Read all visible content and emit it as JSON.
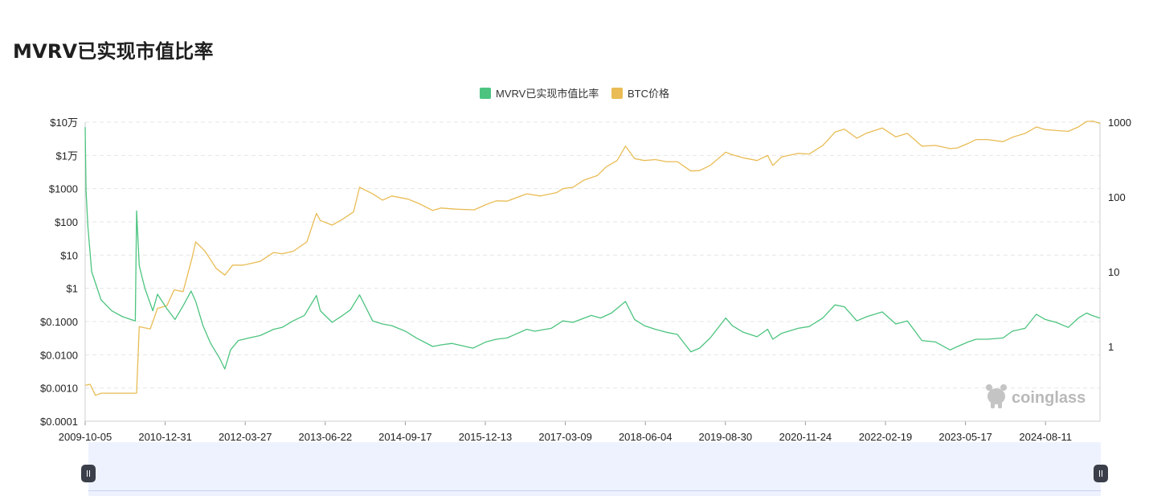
{
  "title": "MVRV已实现市值比率",
  "legend": [
    {
      "label": "MVRV已实现市值比率",
      "color": "#4cc47f"
    },
    {
      "label": "BTC价格",
      "color": "#e9bc55"
    }
  ],
  "watermark": "coinglass",
  "chart_data": {
    "type": "line",
    "x_ticks": [
      "2009-10-05",
      "2010-12-31",
      "2012-03-27",
      "2013-06-22",
      "2014-09-17",
      "2015-12-13",
      "2017-03-09",
      "2018-06-04",
      "2019-08-30",
      "2020-11-24",
      "2022-02-19",
      "2023-05-17",
      "2024-08-11"
    ],
    "x_range": [
      "2009-10-05",
      "2025-03-01"
    ],
    "left_axis": {
      "scale": "log",
      "ticks": [
        "$10万",
        "$1万",
        "$1000",
        "$100",
        "$10",
        "$1",
        "$0.1000",
        "$0.0100",
        "$0.0010",
        "$0.0001"
      ],
      "range": [
        0.0001,
        100000
      ]
    },
    "right_axis": {
      "scale": "log",
      "ticks": [
        "1000",
        "100",
        "10",
        "1"
      ],
      "range": [
        0.1,
        1000
      ]
    },
    "grid": true,
    "legend_position": "top-center",
    "series": [
      {
        "name": "MVRV已实现市值比率",
        "axis": "right",
        "x": [
          "2009-10-05",
          "2009-10-10",
          "2009-10-20",
          "2009-11-10",
          "2010-01-01",
          "2010-03-01",
          "2010-05-01",
          "2010-07-10",
          "2010-07-17",
          "2010-08-01",
          "2010-09-01",
          "2010-10-15",
          "2010-11-10",
          "2011-01-01",
          "2011-02-15",
          "2011-04-01",
          "2011-05-15",
          "2011-06-10",
          "2011-07-20",
          "2011-09-01",
          "2011-10-20",
          "2011-11-18",
          "2011-12-20",
          "2012-02-01",
          "2012-04-01",
          "2012-06-01",
          "2012-08-15",
          "2012-10-01",
          "2012-12-01",
          "2013-02-01",
          "2013-04-09",
          "2013-05-01",
          "2013-07-05",
          "2013-09-01",
          "2013-10-15",
          "2013-12-04",
          "2014-02-15",
          "2014-04-10",
          "2014-06-01",
          "2014-08-15",
          "2014-10-15",
          "2015-01-14",
          "2015-03-01",
          "2015-05-01",
          "2015-08-25",
          "2015-11-04",
          "2016-01-01",
          "2016-03-01",
          "2016-06-18",
          "2016-08-01",
          "2016-11-01",
          "2017-01-04",
          "2017-03-01",
          "2017-06-11",
          "2017-08-01",
          "2017-10-01",
          "2017-12-17",
          "2018-02-06",
          "2018-04-01",
          "2018-06-01",
          "2018-08-01",
          "2018-10-01",
          "2018-12-15",
          "2019-02-01",
          "2019-04-01",
          "2019-06-26",
          "2019-08-01",
          "2019-10-01",
          "2019-12-17",
          "2020-02-13",
          "2020-03-13",
          "2020-05-01",
          "2020-08-01",
          "2020-10-01",
          "2020-12-15",
          "2021-02-21",
          "2021-04-14",
          "2021-06-22",
          "2021-08-15",
          "2021-11-10",
          "2022-01-24",
          "2022-03-29",
          "2022-06-18",
          "2022-09-01",
          "2022-11-21",
          "2023-01-01",
          "2023-03-01",
          "2023-04-14",
          "2023-06-15",
          "2023-09-11",
          "2023-11-01",
          "2024-01-11",
          "2024-03-13",
          "2024-05-01",
          "2024-07-01",
          "2024-09-06",
          "2024-11-01",
          "2024-12-17",
          "2025-01-15",
          "2025-03-01"
        ],
        "values": [
          860,
          120,
          40,
          10,
          4.2,
          3.0,
          2.5,
          2.2,
          65,
          12,
          6.0,
          3.0,
          5.0,
          3.2,
          2.3,
          3.5,
          5.5,
          4.0,
          1.9,
          1.1,
          0.7,
          0.5,
          0.9,
          1.2,
          1.3,
          1.4,
          1.7,
          1.8,
          2.2,
          2.6,
          4.8,
          3.0,
          2.1,
          2.6,
          3.1,
          4.9,
          2.2,
          2.0,
          1.9,
          1.6,
          1.3,
          1.0,
          1.05,
          1.1,
          0.95,
          1.15,
          1.25,
          1.3,
          1.7,
          1.6,
          1.75,
          2.2,
          2.1,
          2.6,
          2.4,
          2.8,
          4.0,
          2.3,
          1.9,
          1.7,
          1.55,
          1.45,
          0.85,
          0.95,
          1.3,
          2.4,
          1.9,
          1.55,
          1.35,
          1.7,
          1.25,
          1.5,
          1.75,
          1.85,
          2.4,
          3.6,
          3.4,
          2.2,
          2.5,
          2.9,
          2.0,
          2.2,
          1.2,
          1.15,
          0.9,
          1.0,
          1.15,
          1.25,
          1.25,
          1.3,
          1.6,
          1.75,
          2.7,
          2.3,
          2.1,
          1.8,
          2.4,
          2.8,
          2.6,
          2.4
        ]
      },
      {
        "name": "BTC价格",
        "axis": "left",
        "x": [
          "2009-10-05",
          "2009-11-01",
          "2009-12-01",
          "2010-01-01",
          "2010-03-01",
          "2010-05-01",
          "2010-07-17",
          "2010-08-01",
          "2010-10-01",
          "2010-11-10",
          "2011-01-01",
          "2011-02-10",
          "2011-04-01",
          "2011-05-20",
          "2011-06-10",
          "2011-08-01",
          "2011-10-01",
          "2011-11-18",
          "2012-01-01",
          "2012-03-01",
          "2012-06-01",
          "2012-08-15",
          "2012-10-01",
          "2012-12-01",
          "2013-02-15",
          "2013-04-09",
          "2013-05-01",
          "2013-07-05",
          "2013-09-01",
          "2013-11-01",
          "2013-12-04",
          "2014-02-15",
          "2014-04-10",
          "2014-06-01",
          "2014-09-01",
          "2014-11-01",
          "2015-01-14",
          "2015-03-01",
          "2015-06-01",
          "2015-09-01",
          "2015-11-04",
          "2016-01-01",
          "2016-03-01",
          "2016-06-18",
          "2016-09-01",
          "2016-12-01",
          "2017-01-04",
          "2017-03-01",
          "2017-05-01",
          "2017-07-15",
          "2017-09-01",
          "2017-11-01",
          "2017-12-17",
          "2018-02-06",
          "2018-04-01",
          "2018-06-01",
          "2018-08-01",
          "2018-10-01",
          "2018-12-15",
          "2019-02-01",
          "2019-04-01",
          "2019-06-26",
          "2019-08-01",
          "2019-10-01",
          "2019-12-17",
          "2020-02-13",
          "2020-03-13",
          "2020-05-01",
          "2020-08-01",
          "2020-10-01",
          "2020-12-15",
          "2021-02-21",
          "2021-04-14",
          "2021-06-22",
          "2021-08-15",
          "2021-11-10",
          "2022-01-24",
          "2022-03-29",
          "2022-06-18",
          "2022-09-01",
          "2022-11-21",
          "2023-01-01",
          "2023-03-01",
          "2023-04-14",
          "2023-06-15",
          "2023-09-11",
          "2023-11-01",
          "2024-01-11",
          "2024-03-13",
          "2024-05-01",
          "2024-07-05",
          "2024-09-06",
          "2024-11-01",
          "2024-12-17",
          "2025-01-20",
          "2025-03-01"
        ],
        "values": [
          0.0012,
          0.0013,
          0.0006,
          0.0007,
          0.0007,
          0.0007,
          0.0007,
          0.07,
          0.06,
          0.25,
          0.3,
          0.9,
          0.8,
          8,
          25,
          13,
          4,
          2.5,
          5,
          5,
          6.5,
          12,
          11,
          13,
          25,
          180,
          110,
          80,
          120,
          200,
          1100,
          700,
          450,
          600,
          480,
          350,
          220,
          260,
          240,
          230,
          330,
          430,
          420,
          700,
          600,
          760,
          1000,
          1100,
          1800,
          2500,
          4500,
          7000,
          19000,
          8000,
          7000,
          7500,
          6500,
          6500,
          3400,
          3500,
          5000,
          12500,
          10500,
          8500,
          7000,
          10000,
          5000,
          9000,
          11500,
          11000,
          20000,
          50000,
          62000,
          33000,
          47000,
          67000,
          36000,
          46000,
          19000,
          20000,
          16000,
          16800,
          23000,
          30000,
          30000,
          26000,
          35000,
          46000,
          72000,
          60000,
          56000,
          53000,
          72000,
          105000,
          108000,
          92000
        ]
      }
    ]
  }
}
